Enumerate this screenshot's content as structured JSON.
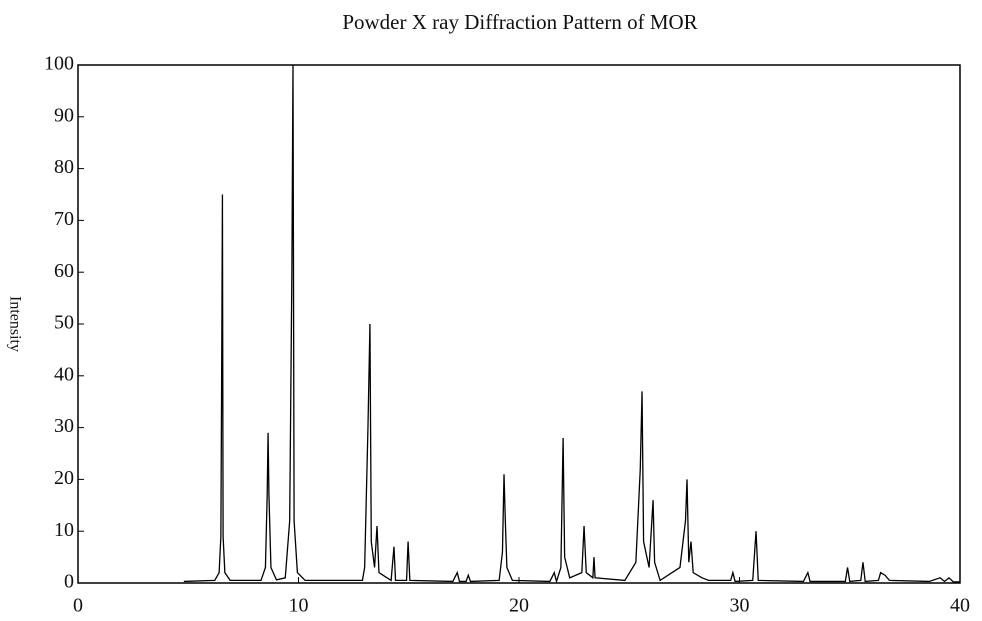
{
  "chart_data": {
    "type": "line",
    "title": "Powder X ray Diffraction Pattern of MOR",
    "y_label": "Intensity",
    "xlim": [
      0,
      40
    ],
    "ylim": [
      0,
      100
    ],
    "xticks": [
      0,
      10,
      20,
      30,
      40
    ],
    "yticks": [
      0,
      10,
      20,
      30,
      40,
      50,
      60,
      70,
      80,
      90,
      100
    ],
    "grid": false,
    "series": [
      {
        "color": "#000000",
        "x": [
          4.8,
          6.2,
          6.4,
          6.48,
          6.52,
          6.55,
          6.58,
          6.66,
          6.9,
          8.3,
          8.5,
          8.58,
          8.62,
          8.66,
          8.75,
          9.0,
          9.4,
          9.6,
          9.7,
          9.75,
          9.8,
          9.95,
          10.3,
          12.9,
          13.0,
          13.15,
          13.24,
          13.3,
          13.45,
          13.56,
          13.65,
          14.2,
          14.33,
          14.4,
          14.9,
          14.97,
          15.05,
          17.0,
          17.2,
          17.3,
          17.6,
          17.7,
          17.8,
          19.1,
          19.25,
          19.32,
          19.38,
          19.45,
          19.7,
          21.4,
          21.6,
          21.7,
          21.9,
          22.0,
          22.07,
          22.3,
          22.85,
          22.95,
          23.05,
          23.35,
          23.4,
          23.45,
          24.8,
          25.3,
          25.5,
          25.58,
          25.65,
          25.9,
          26.08,
          26.15,
          26.4,
          27.3,
          27.55,
          27.62,
          27.7,
          27.8,
          27.9,
          28.3,
          28.6,
          29.6,
          29.7,
          29.8,
          30.6,
          30.75,
          30.85,
          32.9,
          33.1,
          33.2,
          34.8,
          34.9,
          35.0,
          35.5,
          35.6,
          35.7,
          36.3,
          36.4,
          36.6,
          36.8,
          38.6,
          39.1,
          39.3,
          39.5,
          39.7,
          40
        ],
        "values": [
          0.3,
          0.5,
          2,
          9,
          45,
          75,
          9,
          2,
          0.5,
          0.5,
          3,
          17,
          29,
          17,
          3,
          0.6,
          1,
          12,
          60,
          100,
          12,
          2,
          0.5,
          0.5,
          3,
          30,
          50,
          8,
          3,
          11,
          2,
          0.5,
          7,
          0.5,
          0.5,
          8,
          0.5,
          0.3,
          2,
          0.3,
          0.3,
          1.5,
          0.3,
          0.5,
          6,
          21,
          12,
          3,
          0.5,
          0.3,
          2,
          0.3,
          3,
          28,
          5,
          1,
          2,
          11,
          2,
          1,
          5,
          1,
          0.5,
          4,
          22,
          37,
          8,
          3,
          16,
          4,
          0.5,
          3,
          12,
          20,
          4,
          8,
          2,
          1,
          0.5,
          0.5,
          2,
          0.3,
          0.5,
          10,
          0.5,
          0.3,
          2,
          0.3,
          0.3,
          3,
          0.3,
          0.5,
          4,
          0.3,
          0.5,
          2,
          1.5,
          0.5,
          0.3,
          1,
          0.3,
          1,
          0.2,
          0.2
        ]
      }
    ]
  }
}
